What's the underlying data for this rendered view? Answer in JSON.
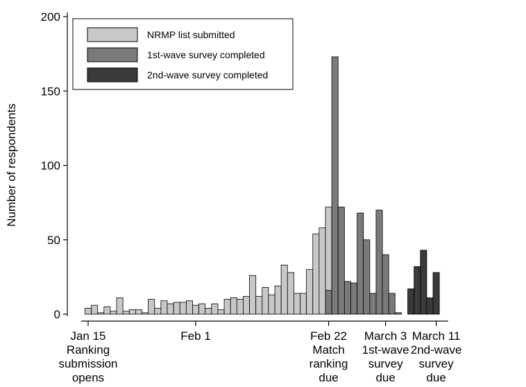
{
  "chart_data": {
    "type": "bar",
    "ylabel": "Number of respondents",
    "ylim": [
      0,
      200
    ],
    "yticks": [
      0,
      50,
      100,
      150,
      200
    ],
    "grid": false,
    "legend_placement": "top-left",
    "x_tick_labels": [
      {
        "day": 0,
        "lines": [
          "Jan 15",
          "Ranking",
          "submission",
          "opens"
        ]
      },
      {
        "day": 17,
        "lines": [
          "Feb 1"
        ]
      },
      {
        "day": 38,
        "lines": [
          "Feb 22",
          "Match",
          "ranking",
          "due"
        ]
      },
      {
        "day": 47,
        "lines": [
          "March 3",
          "1st-wave",
          "survey",
          "due"
        ]
      },
      {
        "day": 55,
        "lines": [
          "March 11",
          "2nd-wave",
          "survey",
          "due"
        ]
      }
    ],
    "series": [
      {
        "name": "NRMP list submitted",
        "color": "#c8c8c8",
        "start_day": 0,
        "values": [
          4,
          6,
          1,
          5,
          2,
          11,
          2,
          3,
          3,
          1,
          10,
          4,
          9,
          7,
          8,
          8,
          9,
          6,
          7,
          4,
          7,
          3,
          10,
          11,
          10,
          12,
          26,
          12,
          18,
          13,
          19,
          33,
          28,
          14,
          14,
          30,
          54,
          58,
          72
        ]
      },
      {
        "name": "1st-wave survey completed",
        "color": "#7a7a7a",
        "start_day": 38,
        "values": [
          16,
          173,
          72,
          22,
          21,
          68,
          50,
          14,
          70,
          40,
          14,
          1
        ]
      },
      {
        "name": "2nd-wave survey completed",
        "color": "#3a3a3a",
        "start_day": 51,
        "values": [
          17,
          32,
          43,
          11,
          28
        ]
      }
    ]
  }
}
